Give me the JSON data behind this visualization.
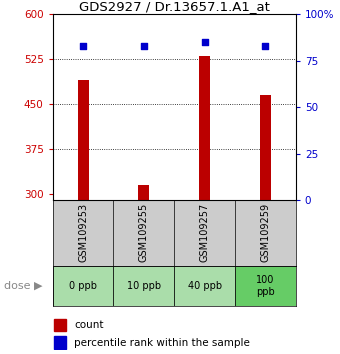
{
  "title": "GDS2927 / Dr.13657.1.A1_at",
  "samples": [
    "GSM109253",
    "GSM109255",
    "GSM109257",
    "GSM109259"
  ],
  "doses": [
    "0 ppb",
    "10 ppb",
    "40 ppb",
    "100\nppb"
  ],
  "dose_colors": [
    "#aaddaa",
    "#aaddaa",
    "#aaddaa",
    "#66cc66"
  ],
  "bar_values": [
    490,
    315,
    530,
    465
  ],
  "bar_base": 290,
  "percentile_values": [
    83,
    83,
    85,
    83
  ],
  "bar_color": "#bb0000",
  "dot_color": "#0000cc",
  "ylim_left": [
    290,
    600
  ],
  "ylim_right": [
    0,
    100
  ],
  "yticks_left": [
    300,
    375,
    450,
    525,
    600
  ],
  "yticks_right": [
    0,
    25,
    50,
    75,
    100
  ],
  "ytick_labels_left": [
    "300",
    "375",
    "450",
    "525",
    "600"
  ],
  "ytick_labels_right": [
    "0",
    "25",
    "50",
    "75",
    "100%"
  ],
  "grid_values": [
    375,
    450,
    525
  ],
  "sample_bg_color": "#cccccc",
  "left_tick_color": "#cc0000",
  "right_tick_color": "#0000cc",
  "bar_width": 0.18,
  "dot_size": 25,
  "fig_width": 3.4,
  "fig_height": 3.54,
  "dpi": 100
}
